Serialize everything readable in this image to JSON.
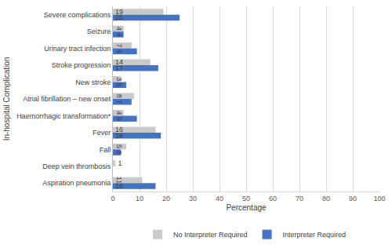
{
  "chart_data": {
    "type": "bar",
    "orientation": "horizontal",
    "x_label": "Percentage",
    "y_label": "In-hospital Complication",
    "categories": [
      "Severe complications",
      "Seizure",
      "Urinary tract infection",
      "Stroke progression",
      "New stroke",
      "Atrial fibrillation – new onset",
      "Haemorrhagic transformation*",
      "Fever",
      "Fall",
      "Deep vein thrombosis",
      "Aspiration pneumonia"
    ],
    "series": [
      {
        "name": "No Interpreter Required",
        "color": "#c9c9c9",
        "values": [
          19,
          4,
          7,
          14,
          3,
          8,
          4,
          16,
          5,
          1,
          11
        ]
      },
      {
        "name": "Interpreter Required",
        "color": "#4472c4",
        "values": [
          25,
          4,
          9,
          17,
          5,
          7,
          9,
          18,
          3,
          null,
          16
        ]
      }
    ],
    "xlim": [
      0,
      100
    ],
    "xticks": [
      0,
      10,
      20,
      30,
      40,
      50,
      60,
      70,
      80,
      90,
      100
    ],
    "grid": true,
    "data_labels": true,
    "legend": "bottom"
  }
}
